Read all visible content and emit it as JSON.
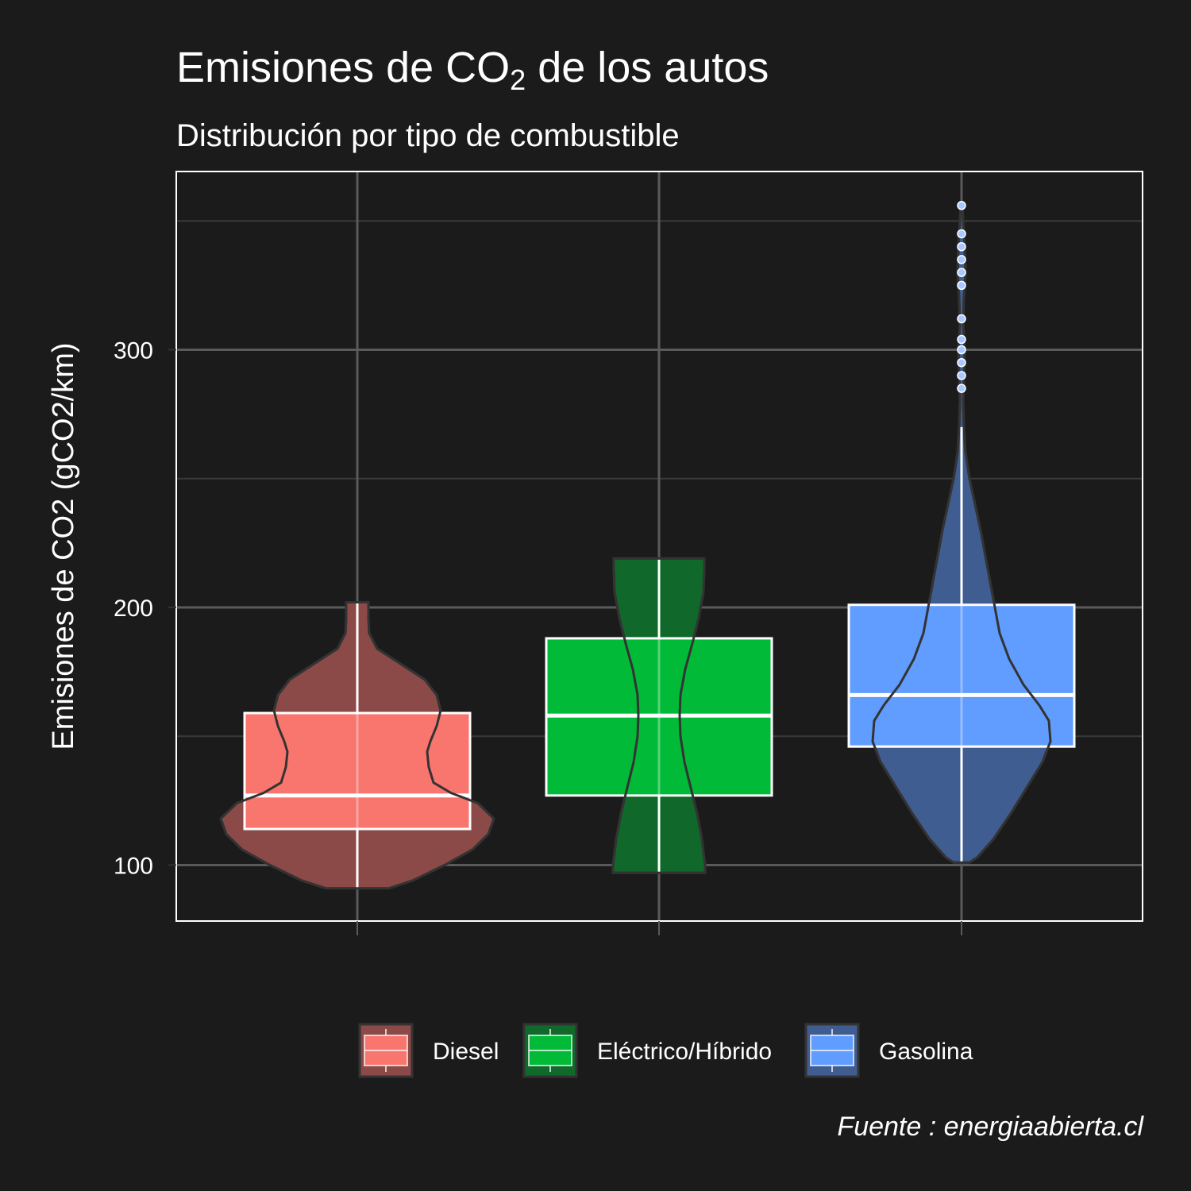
{
  "title_main": "Emisiones de CO",
  "title_sub": "2",
  "title_tail": " de los autos",
  "subtitle": "Distribución por tipo de combustible",
  "caption": "Fuente : energiaabierta.cl",
  "chart_data": {
    "type": "violin+boxplot",
    "title": "Emisiones de CO2 de los autos",
    "subtitle": "Distribución por tipo de combustible",
    "xlabel": "",
    "ylabel": "Emisiones de CO2 (gCO2/km)",
    "yticks": [
      100,
      200,
      300
    ],
    "ylim": [
      78,
      369
    ],
    "grid": true,
    "legend_position": "bottom",
    "series": [
      {
        "name": "Diesel",
        "color": "#f8766d",
        "violin_color": "#8b4a47",
        "box": {
          "q1": 114,
          "median": 127,
          "q3": 159,
          "lower_whisker": 91,
          "upper_whisker": 202
        },
        "violin_extent": [
          91,
          202
        ]
      },
      {
        "name": "Eléctrico/Híbrido",
        "color": "#00ba38",
        "violin_color": "#10692a",
        "box": {
          "q1": 127,
          "median": 158,
          "q3": 188,
          "lower_whisker": 97,
          "upper_whisker": 219
        },
        "violin_extent": [
          97,
          219
        ]
      },
      {
        "name": "Gasolina",
        "color": "#619cff",
        "violin_color": "#3f5d91",
        "box": {
          "q1": 146,
          "median": 166,
          "q3": 201,
          "lower_whisker": 101,
          "upper_whisker": 270
        },
        "violin_extent": [
          101,
          356
        ],
        "outliers": [
          285,
          290,
          295,
          300,
          304,
          312,
          325,
          330,
          335,
          340,
          345,
          356
        ]
      }
    ]
  }
}
